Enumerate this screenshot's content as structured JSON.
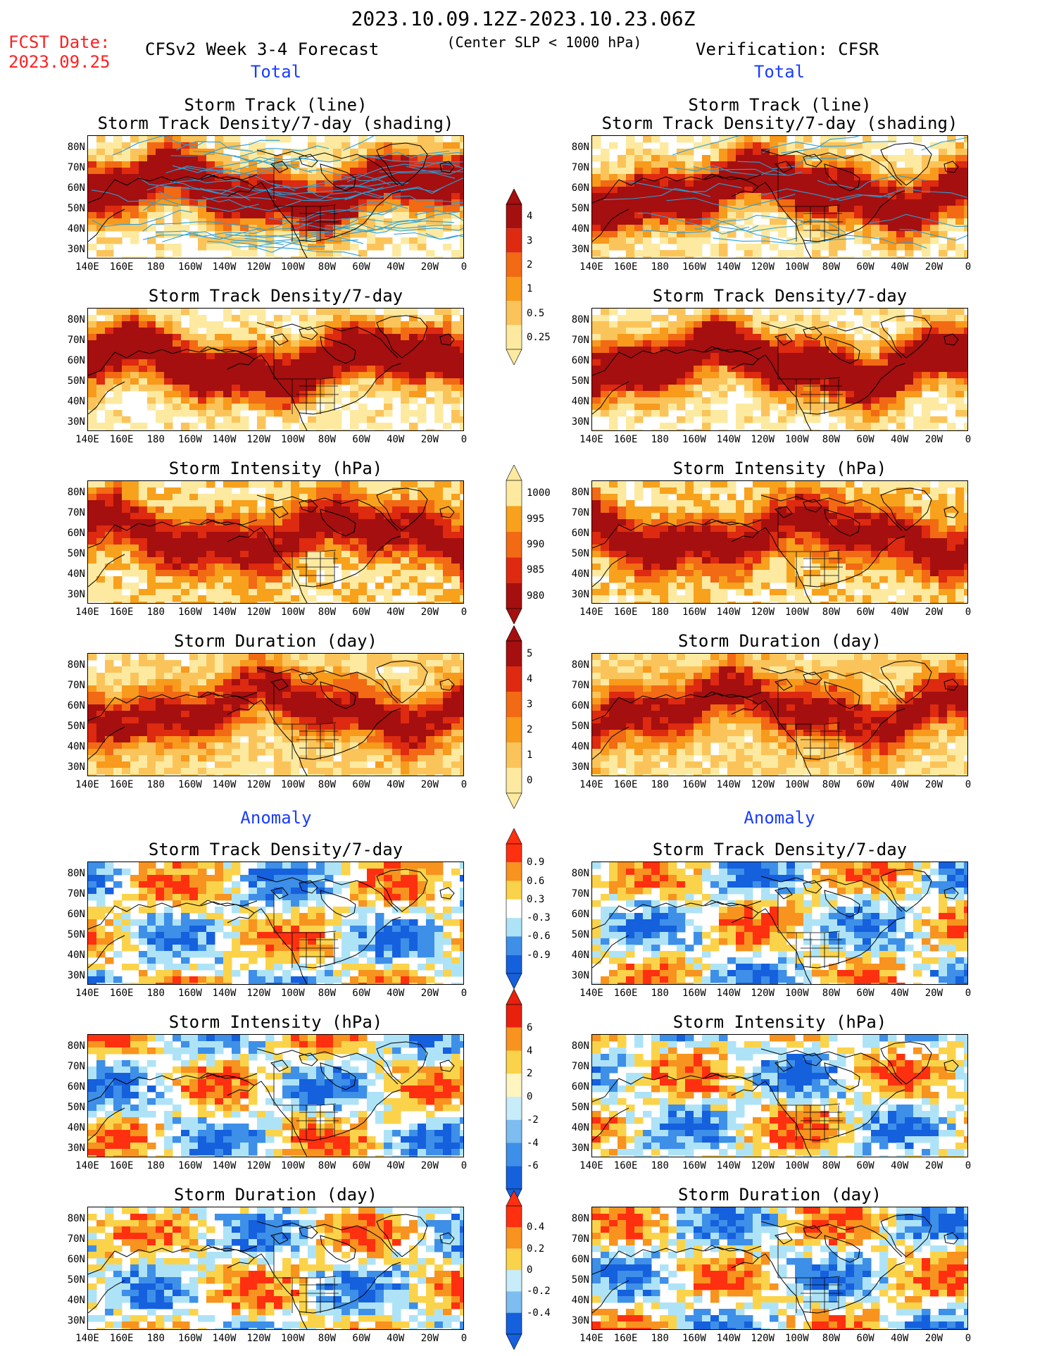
{
  "header": {
    "date_range": "2023.10.09.12Z-2023.10.23.06Z",
    "fcst_label": "FCST Date:",
    "fcst_date": "2023.09.25",
    "model_title": "CFSv2 Week 3-4 Forecast",
    "criterion": "(Center SLP < 1000 hPa)",
    "verification": "Verification: CFSR"
  },
  "sections": {
    "total": "Total",
    "anomaly": "Anomaly"
  },
  "axes": {
    "lat_labels": [
      "80N",
      "70N",
      "60N",
      "50N",
      "40N",
      "30N"
    ],
    "lon_labels": [
      "140E",
      "160E",
      "180",
      "160W",
      "140W",
      "120W",
      "100W",
      "80W",
      "60W",
      "40W",
      "20W",
      "0"
    ]
  },
  "panels": [
    {
      "id": "fc-track",
      "title1": "Storm Track (line)",
      "title2": "Storm Track Density/7-day (shading)",
      "scheme": "dens",
      "seed": 3,
      "col": "left",
      "row": 0,
      "tracks": true
    },
    {
      "id": "ob-track",
      "title1": "Storm Track (line)",
      "title2": "Storm Track Density/7-day (shading)",
      "scheme": "dens",
      "seed": 7,
      "col": "right",
      "row": 0,
      "tracks": true
    },
    {
      "id": "fc-dens",
      "title1": "Storm Track Density/7-day",
      "title2": "",
      "scheme": "dens",
      "seed": 4,
      "col": "left",
      "row": 1
    },
    {
      "id": "ob-dens",
      "title1": "Storm Track Density/7-day",
      "title2": "",
      "scheme": "dens",
      "seed": 8,
      "col": "right",
      "row": 1
    },
    {
      "id": "fc-int",
      "title1": "Storm Intensity (hPa)",
      "title2": "",
      "scheme": "int",
      "seed": 11,
      "col": "left",
      "row": 2
    },
    {
      "id": "ob-int",
      "title1": "Storm Intensity (hPa)",
      "title2": "",
      "scheme": "int",
      "seed": 12,
      "col": "right",
      "row": 2
    },
    {
      "id": "fc-dur",
      "title1": "Storm Duration (day)",
      "title2": "",
      "scheme": "dur",
      "seed": 13,
      "col": "left",
      "row": 3
    },
    {
      "id": "ob-dur",
      "title1": "Storm Duration (day)",
      "title2": "",
      "scheme": "dur",
      "seed": 14,
      "col": "right",
      "row": 3
    },
    {
      "id": "fc-adens",
      "title1": "Storm Track Density/7-day",
      "title2": "",
      "scheme": "anom",
      "seed": 21,
      "col": "left",
      "row": 4
    },
    {
      "id": "ob-adens",
      "title1": "Storm Track Density/7-day",
      "title2": "",
      "scheme": "anom",
      "seed": 22,
      "col": "right",
      "row": 4
    },
    {
      "id": "fc-aint",
      "title1": "Storm Intensity (hPa)",
      "title2": "",
      "scheme": "anom",
      "seed": 23,
      "col": "left",
      "row": 5
    },
    {
      "id": "ob-aint",
      "title1": "Storm Intensity (hPa)",
      "title2": "",
      "scheme": "anom",
      "seed": 24,
      "col": "right",
      "row": 5
    },
    {
      "id": "fc-adur",
      "title1": "Storm Duration (day)",
      "title2": "",
      "scheme": "anom",
      "seed": 25,
      "col": "left",
      "row": 6
    },
    {
      "id": "ob-adur",
      "title1": "Storm Duration (day)",
      "title2": "",
      "scheme": "anom",
      "seed": 26,
      "col": "right",
      "row": 6
    }
  ],
  "colorbars": [
    {
      "id": "cb-dens",
      "labels": [
        "4",
        "3",
        "2",
        "1",
        "0.5",
        "0.25"
      ],
      "colors": [
        "#a50f0f",
        "#dd2a10",
        "#f26a14",
        "#f89a1c",
        "#fbc45a",
        "#fdeaa0"
      ],
      "shape": "both"
    },
    {
      "id": "cb-int",
      "labels": [
        "1000",
        "995",
        "990",
        "985",
        "980"
      ],
      "colors": [
        "#fdeaa0",
        "#f8a11d",
        "#f26a14",
        "#dd2a10",
        "#a50f0f"
      ],
      "shape": "both"
    },
    {
      "id": "cb-dur",
      "labels": [
        "5",
        "4",
        "3",
        "2",
        "1",
        "0"
      ],
      "colors": [
        "#a50f0f",
        "#dd2a10",
        "#f26a14",
        "#f89a1c",
        "#fbc45a",
        "#fdeaa0"
      ],
      "shape": "both"
    },
    {
      "id": "cb-adens",
      "labels": [
        "0.9",
        "0.6",
        "0.3",
        "-0.3",
        "-0.6",
        "-0.9"
      ],
      "colors": [
        "#ff3010",
        "#f7931e",
        "#fbd34a",
        "#ffffff",
        "#aee3f7",
        "#3d8fe8",
        "#1560dd"
      ],
      "shape": "both"
    },
    {
      "id": "cb-aint",
      "labels": [
        "6",
        "4",
        "2",
        "0",
        "-2",
        "-4",
        "-6"
      ],
      "colors": [
        "#e8200c",
        "#f7931e",
        "#fbd34a",
        "#fff5c0",
        "#c8ecfa",
        "#7dbdf0",
        "#3d8fe8",
        "#1560dd"
      ],
      "shape": "both"
    },
    {
      "id": "cb-adur",
      "labels": [
        "0.4",
        "0.2",
        "0",
        "-0.2",
        "-0.4"
      ],
      "colors": [
        "#ff3010",
        "#f7931e",
        "#fbd34a",
        "#c8ecfa",
        "#7dbdf0",
        "#1560dd"
      ],
      "shape": "both"
    }
  ],
  "colors": {
    "dens": [
      "#ffffff",
      "#fdeaa0",
      "#fbc45a",
      "#f89a1c",
      "#f26a14",
      "#dd2a10",
      "#a50f0f"
    ],
    "int": [
      "#ffffff",
      "#fdeaa0",
      "#f8a11d",
      "#f26a14",
      "#dd2a10",
      "#a50f0f"
    ],
    "dur": [
      "#ffffff",
      "#fdeaa0",
      "#fbc45a",
      "#f89a1c",
      "#f26a14",
      "#dd2a10",
      "#a50f0f"
    ],
    "anom": [
      "#1560dd",
      "#3d8fe8",
      "#aee3f7",
      "#ffffff",
      "#fbd34a",
      "#f7931e",
      "#ff3010"
    ],
    "track_line": "#2a9fd8",
    "coast": "#000000"
  }
}
